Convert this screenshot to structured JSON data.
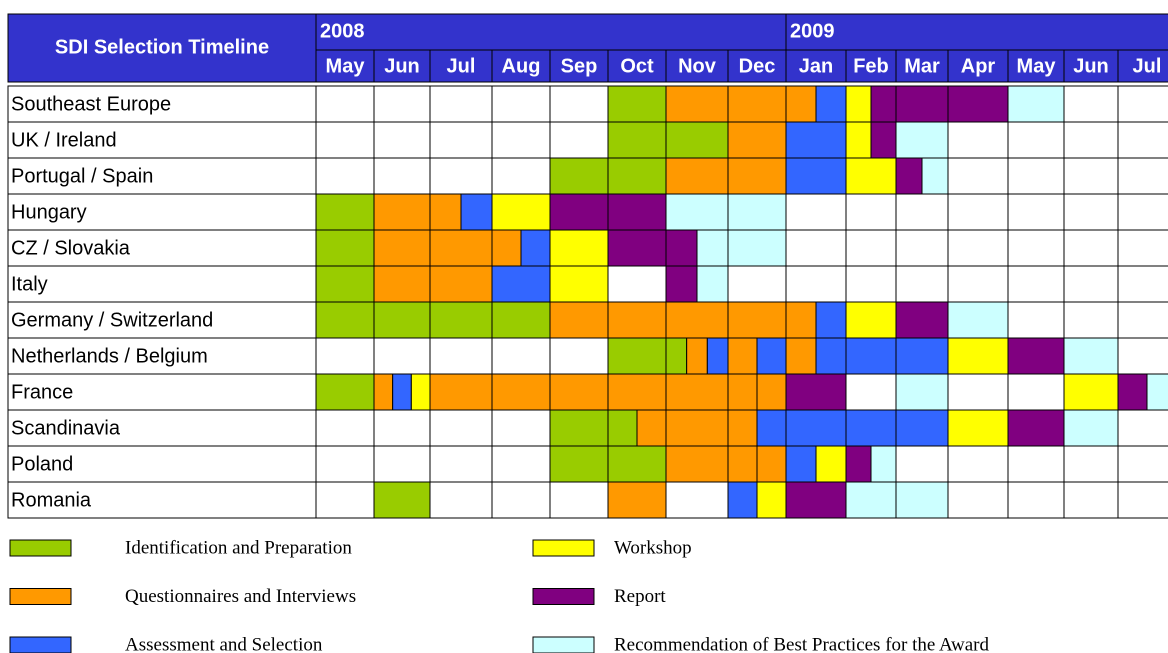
{
  "header": {
    "title": "SDI Selection Timeline",
    "years": [
      {
        "year": "2008",
        "months": [
          "May",
          "Jun",
          "Jul",
          "Aug",
          "Sep",
          "Oct",
          "Nov",
          "Dec"
        ]
      },
      {
        "year": "2009",
        "months": [
          "Jan",
          "Feb",
          "Mar",
          "Apr",
          "May",
          "Jun",
          "Jul"
        ]
      }
    ],
    "color": "#3333cc"
  },
  "rows": [
    {
      "name": "Southeast Europe",
      "cells": [
        [],
        [],
        [],
        [],
        [],
        [
          "#99cc00"
        ],
        [
          "#ff9900"
        ],
        [
          "#ff9900"
        ],
        [
          "#ff9900",
          "#3366ff"
        ],
        [
          "#ffff00",
          "#800080"
        ],
        [
          "#800080"
        ],
        [
          "#800080"
        ],
        [
          "#ccffff"
        ],
        [],
        []
      ]
    },
    {
      "name": "UK / Ireland",
      "cells": [
        [],
        [],
        [],
        [],
        [],
        [
          "#99cc00"
        ],
        [
          "#99cc00"
        ],
        [
          "#ff9900"
        ],
        [
          "#3366ff"
        ],
        [
          "#ffff00",
          "#800080"
        ],
        [
          "#ccffff"
        ],
        [],
        [],
        [],
        []
      ]
    },
    {
      "name": "Portugal / Spain",
      "cells": [
        [],
        [],
        [],
        [],
        [
          "#99cc00"
        ],
        [
          "#99cc00"
        ],
        [
          "#ff9900"
        ],
        [
          "#ff9900"
        ],
        [
          "#3366ff"
        ],
        [
          "#ffff00"
        ],
        [
          "#800080",
          "#ccffff"
        ],
        [],
        [],
        [],
        []
      ]
    },
    {
      "name": "Hungary",
      "cells": [
        [
          "#99cc00"
        ],
        [
          "#ff9900"
        ],
        [
          "#ff9900",
          "#3366ff"
        ],
        [
          "#ffff00"
        ],
        [
          "#800080"
        ],
        [
          "#800080"
        ],
        [
          "#ccffff"
        ],
        [
          "#ccffff"
        ],
        [],
        [],
        [],
        [],
        [],
        [],
        []
      ]
    },
    {
      "name": "CZ / Slovakia",
      "cells": [
        [
          "#99cc00"
        ],
        [
          "#ff9900"
        ],
        [
          "#ff9900"
        ],
        [
          "#ff9900",
          "#3366ff"
        ],
        [
          "#ffff00"
        ],
        [
          "#800080"
        ],
        [
          "#800080",
          "#ccffff"
        ],
        [
          "#ccffff"
        ],
        [],
        [],
        [],
        [],
        [],
        [],
        []
      ]
    },
    {
      "name": "Italy",
      "cells": [
        [
          "#99cc00"
        ],
        [
          "#ff9900"
        ],
        [
          "#ff9900"
        ],
        [
          "#3366ff"
        ],
        [
          "#ffff00"
        ],
        [],
        [
          "#800080",
          "#ccffff"
        ],
        [],
        [],
        [],
        [],
        [],
        [],
        [],
        []
      ]
    },
    {
      "name": "Germany / Switzerland",
      "cells": [
        [
          "#99cc00"
        ],
        [
          "#99cc00"
        ],
        [
          "#99cc00"
        ],
        [
          "#99cc00"
        ],
        [
          "#ff9900"
        ],
        [
          "#ff9900"
        ],
        [
          "#ff9900"
        ],
        [
          "#ff9900"
        ],
        [
          "#ff9900",
          "#3366ff"
        ],
        [
          "#ffff00"
        ],
        [
          "#800080"
        ],
        [
          "#ccffff"
        ],
        [],
        [],
        []
      ]
    },
    {
      "name": "Netherlands / Belgium",
      "cells": [
        [],
        [],
        [],
        [],
        [],
        [
          "#99cc00"
        ],
        [
          "#99cc00",
          "#ff9900",
          "#3366ff"
        ],
        [
          "#ff9900",
          "#3366ff"
        ],
        [
          "#ff9900",
          "#3366ff"
        ],
        [
          "#3366ff"
        ],
        [
          "#3366ff"
        ],
        [
          "#ffff00"
        ],
        [
          "#800080"
        ],
        [
          "#ccffff"
        ],
        []
      ]
    },
    {
      "name": "France",
      "cells": [
        [
          "#99cc00"
        ],
        [
          "#ff9900",
          "#3366ff",
          "#ffff00"
        ],
        [
          "#ff9900"
        ],
        [
          "#ff9900"
        ],
        [
          "#ff9900"
        ],
        [
          "#ff9900"
        ],
        [
          "#ff9900"
        ],
        [
          "#ff9900",
          "#ff9900"
        ],
        [
          "#800080"
        ],
        [],
        [
          "#ccffff"
        ],
        [],
        [],
        [
          "#ffff00"
        ],
        [
          "#800080",
          "#ccffff"
        ]
      ]
    },
    {
      "name": "Scandinavia",
      "cells": [
        [],
        [],
        [],
        [],
        [
          "#99cc00"
        ],
        [
          "#99cc00",
          "#ff9900"
        ],
        [
          "#ff9900"
        ],
        [
          "#ff9900",
          "#3366ff"
        ],
        [
          "#3366ff"
        ],
        [
          "#3366ff"
        ],
        [
          "#3366ff"
        ],
        [
          "#ffff00"
        ],
        [
          "#800080"
        ],
        [
          "#ccffff"
        ],
        []
      ]
    },
    {
      "name": "Poland",
      "cells": [
        [],
        [],
        [],
        [],
        [
          "#99cc00"
        ],
        [
          "#99cc00"
        ],
        [
          "#ff9900"
        ],
        [
          "#ff9900",
          "#ff9900"
        ],
        [
          "#3366ff",
          "#ffff00"
        ],
        [
          "#800080",
          "#ccffff"
        ],
        [],
        [],
        [],
        [],
        []
      ]
    },
    {
      "name": "Romania",
      "cells": [
        [],
        [
          "#99cc00"
        ],
        [],
        [],
        [],
        [
          "#ff9900"
        ],
        [],
        [
          "#3366ff",
          "#ffff00"
        ],
        [
          "#800080"
        ],
        [
          "#ccffff"
        ],
        [
          "#ccffff"
        ],
        [],
        [],
        [],
        []
      ]
    }
  ],
  "legend": [
    {
      "label": "Identification and Preparation",
      "color": "#99cc00"
    },
    {
      "label": "Questionnaires and Interviews",
      "color": "#ff9900"
    },
    {
      "label": "Assessment and Selection",
      "color": "#3366ff"
    },
    {
      "label": "Workshop",
      "color": "#ffff00"
    },
    {
      "label": "Report",
      "color": "#800080"
    },
    {
      "label": "Recommendation of Best Practices for the Award",
      "color": "#ccffff"
    }
  ]
}
